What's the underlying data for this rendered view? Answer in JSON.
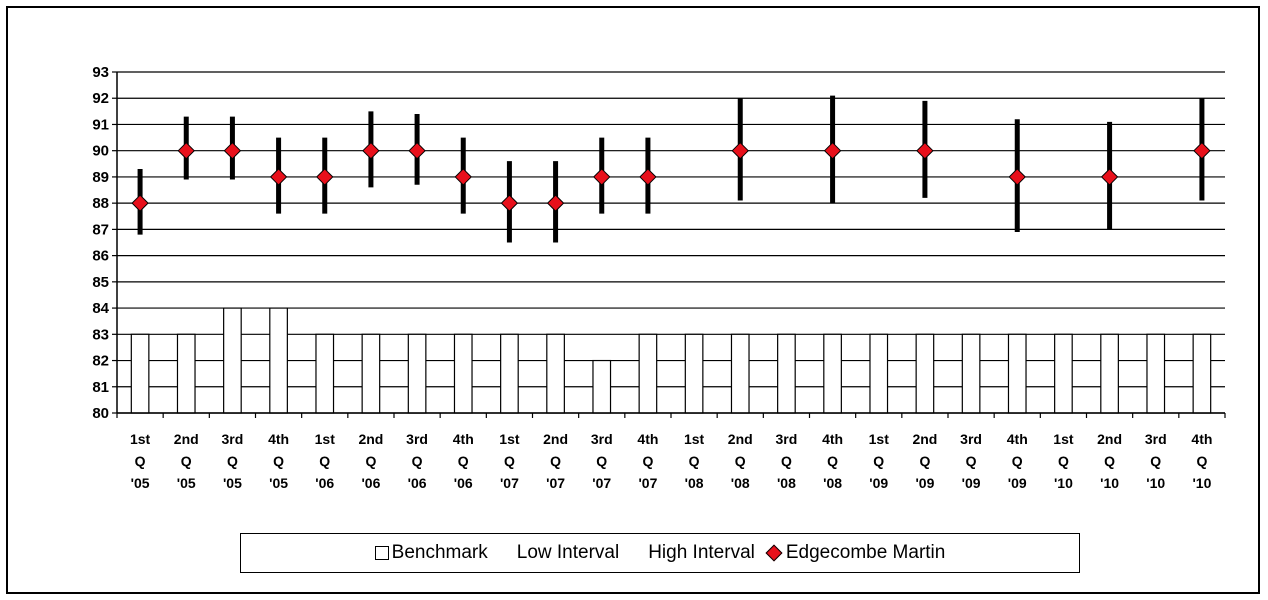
{
  "chart_data": {
    "type": "bar",
    "title": "",
    "xlabel": "",
    "ylabel": "",
    "ylim": [
      80,
      93
    ],
    "yticks": [
      80,
      81,
      82,
      83,
      84,
      85,
      86,
      87,
      88,
      89,
      90,
      91,
      92,
      93
    ],
    "grid": true,
    "legend_position": "bottom",
    "categories": [
      [
        "1st",
        "Q",
        "'05"
      ],
      [
        "2nd",
        "Q",
        "'05"
      ],
      [
        "3rd",
        "Q",
        "'05"
      ],
      [
        "4th",
        "Q",
        "'05"
      ],
      [
        "1st",
        "Q",
        "'06"
      ],
      [
        "2nd",
        "Q",
        "'06"
      ],
      [
        "3rd",
        "Q",
        "'06"
      ],
      [
        "4th",
        "Q",
        "'06"
      ],
      [
        "1st",
        "Q",
        "'07"
      ],
      [
        "2nd",
        "Q",
        "'07"
      ],
      [
        "3rd",
        "Q",
        "'07"
      ],
      [
        "4th",
        "Q",
        "'07"
      ],
      [
        "1st",
        "Q",
        "'08"
      ],
      [
        "2nd",
        "Q",
        "'08"
      ],
      [
        "3rd",
        "Q",
        "'08"
      ],
      [
        "4th",
        "Q",
        "'08"
      ],
      [
        "1st",
        "Q",
        "'09"
      ],
      [
        "2nd",
        "Q",
        "'09"
      ],
      [
        "3rd",
        "Q",
        "'09"
      ],
      [
        "4th",
        "Q",
        "'09"
      ],
      [
        "1st",
        "Q",
        "'10"
      ],
      [
        "2nd",
        "Q",
        "'10"
      ],
      [
        "3rd",
        "Q",
        "'10"
      ],
      [
        "4th",
        "Q",
        "'10"
      ]
    ],
    "series": [
      {
        "name": "Benchmark",
        "kind": "bar",
        "color": "#ffffff",
        "values": [
          83,
          83,
          84,
          84,
          83,
          83,
          83,
          83,
          83,
          83,
          82,
          83,
          83,
          83,
          83,
          83,
          83,
          83,
          83,
          83,
          83,
          83,
          83,
          83
        ]
      },
      {
        "name": "Low Interval",
        "kind": "error_low",
        "color": "#000000",
        "values": [
          86.8,
          88.9,
          88.9,
          87.6,
          87.6,
          88.6,
          88.7,
          87.6,
          86.5,
          86.5,
          87.6,
          87.6,
          null,
          88.1,
          null,
          88.0,
          null,
          88.2,
          null,
          86.9,
          null,
          87.0,
          null,
          88.1
        ]
      },
      {
        "name": "High Interval",
        "kind": "error_high",
        "color": "#000000",
        "values": [
          89.3,
          91.3,
          91.3,
          90.5,
          90.5,
          91.5,
          91.4,
          90.5,
          89.6,
          89.6,
          90.5,
          90.5,
          null,
          92.0,
          null,
          92.1,
          null,
          91.9,
          null,
          91.2,
          null,
          91.1,
          null,
          92.0
        ]
      },
      {
        "name": "Edgecombe Martin",
        "kind": "marker",
        "color": "#e8101b",
        "values": [
          88,
          90,
          90,
          89,
          89,
          90,
          90,
          89,
          88,
          88,
          89,
          89,
          null,
          90,
          null,
          90,
          null,
          90,
          null,
          89,
          null,
          89,
          null,
          90
        ]
      }
    ]
  },
  "legend": {
    "benchmark": "Benchmark",
    "low": "Low Interval",
    "high": "High Interval",
    "edgecombe": "Edgecombe Martin"
  }
}
